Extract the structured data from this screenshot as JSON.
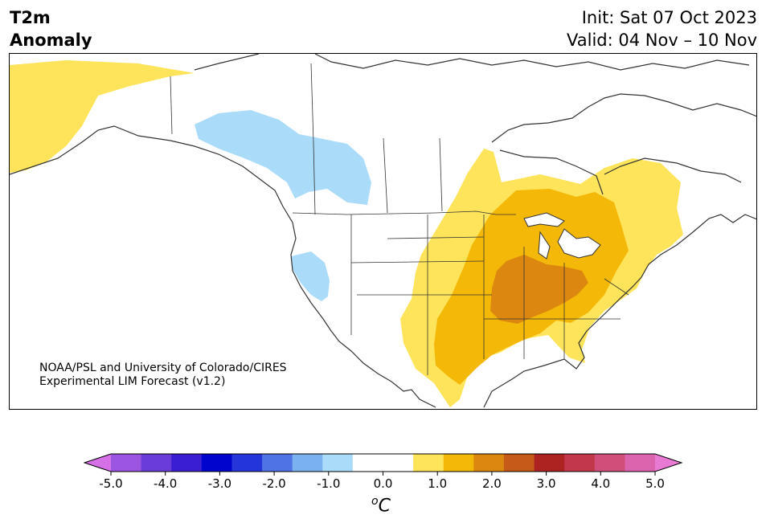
{
  "header": {
    "title_line1": "T2m",
    "title_line2": "Anomaly",
    "init": "Init: Sat 07 Oct 2023",
    "valid": "Valid: 04 Nov – 10 Nov"
  },
  "credit": {
    "line1": "NOAA/PSL and University of Colorado/CIRES",
    "line2": "Experimental LIM Forecast (v1.2)"
  },
  "colorbar": {
    "colors": [
      "#d670e6",
      "#9c55e0",
      "#6a3ddb",
      "#3a1ed2",
      "#0004cd",
      "#2436d9",
      "#4f72e4",
      "#79b2ef",
      "#aadcfa",
      "#ffffff",
      "#ffffff",
      "#fee45a",
      "#f4b808",
      "#db8710",
      "#c65a18",
      "#ad2321",
      "#c2384b",
      "#d24e7a",
      "#dc64ae",
      "#e87ad4"
    ],
    "ticks": [
      "-5.0",
      "-4.0",
      "-3.0",
      "-2.0",
      "-1.0",
      "0.0",
      "1.0",
      "2.0",
      "3.0",
      "4.0",
      "5.0"
    ],
    "unit_base": "C",
    "unit_sup": "o"
  },
  "map": {
    "fill_colors": {
      "cool_1": "#aadcfa",
      "warm_1": "#fee45a",
      "warm_2": "#f4b808",
      "warm_3": "#db8710"
    }
  }
}
